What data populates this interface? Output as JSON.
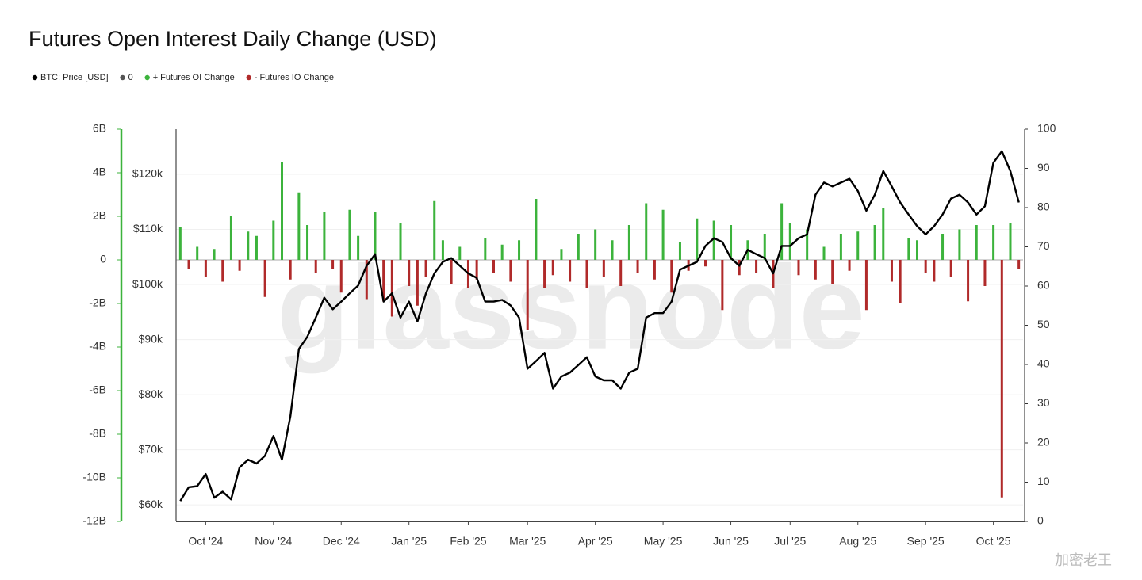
{
  "chart_data": {
    "type": "bar-line",
    "title": "Futures Open Interest Daily Change (USD)",
    "watermark": "glassnode",
    "credit": "加密老王",
    "categories": [
      null,
      null,
      null,
      "Oct '24",
      null,
      null,
      null,
      null,
      null,
      null,
      null,
      "Nov '24",
      null,
      null,
      null,
      null,
      null,
      null,
      null,
      "Dec '24",
      null,
      null,
      null,
      null,
      null,
      null,
      null,
      "Jan '25",
      null,
      null,
      null,
      null,
      null,
      null,
      "Feb '25",
      null,
      null,
      null,
      null,
      null,
      null,
      "Mar '25",
      null,
      null,
      null,
      null,
      null,
      null,
      null,
      "Apr '25",
      null,
      null,
      null,
      null,
      null,
      null,
      null,
      "May '25",
      null,
      null,
      null,
      null,
      null,
      null,
      null,
      "Jun '25",
      null,
      null,
      null,
      null,
      null,
      null,
      "Jul '25",
      null,
      null,
      null,
      null,
      null,
      null,
      null,
      "Aug '25",
      null,
      null,
      null,
      null,
      null,
      null,
      null,
      "Sep '25",
      null,
      null,
      null,
      null,
      null,
      null,
      null,
      "Oct '25",
      null,
      null,
      null
    ],
    "series": [
      {
        "name": "BTC: Price [USD]",
        "color": "#000000",
        "axis": "y2",
        "kind": "line",
        "values": [
          60700,
          63200,
          63400,
          65600,
          61300,
          62400,
          61000,
          66800,
          68200,
          67500,
          68900,
          72500,
          68200,
          76100,
          88300,
          90500,
          94000,
          97600,
          95500,
          96900,
          98400,
          99800,
          103400,
          105500,
          96900,
          98400,
          94000,
          96900,
          93300,
          98400,
          102000,
          104100,
          104800,
          103400,
          102000,
          101200,
          96900,
          96900,
          97200,
          96200,
          94000,
          84700,
          86100,
          87600,
          81100,
          83300,
          84000,
          85400,
          86800,
          83300,
          82600,
          82600,
          81100,
          84000,
          84700,
          94000,
          94800,
          94800,
          96900,
          102700,
          103400,
          104100,
          107000,
          108400,
          107700,
          104800,
          103400,
          106300,
          105500,
          104800,
          102000,
          107000,
          107000,
          108400,
          109100,
          116300,
          118500,
          117800,
          118500,
          119200,
          117000,
          113400,
          116300,
          120600,
          117800,
          114900,
          112700,
          110600,
          109100,
          110600,
          112700,
          115600,
          116300,
          114900,
          112700,
          114200,
          122100,
          124200,
          120600,
          114900
        ]
      },
      {
        "name": "0",
        "color": "#555555",
        "kind": "rule",
        "value": 0
      },
      {
        "name": "+ Futures OI Change",
        "color": "#3cb33c",
        "kind": "bar",
        "values": [
          1500000000.0,
          null,
          600000000.0,
          null,
          500000000.0,
          null,
          2000000000.0,
          null,
          1300000000.0,
          1100000000.0,
          null,
          1800000000.0,
          4500000000.0,
          null,
          3100000000.0,
          1600000000.0,
          null,
          2200000000.0,
          null,
          null,
          2300000000.0,
          1100000000.0,
          null,
          2200000000.0,
          null,
          null,
          1700000000.0,
          null,
          null,
          null,
          2700000000.0,
          900000000.0,
          null,
          600000000.0,
          null,
          null,
          1000000000.0,
          null,
          700000000.0,
          null,
          900000000.0,
          null,
          2800000000.0,
          null,
          null,
          500000000.0,
          null,
          1200000000.0,
          null,
          1400000000.0,
          null,
          900000000.0,
          null,
          1600000000.0,
          null,
          2600000000.0,
          null,
          2300000000.0,
          null,
          800000000.0,
          null,
          1900000000.0,
          null,
          1800000000.0,
          null,
          1600000000.0,
          null,
          900000000.0,
          null,
          1200000000.0,
          null,
          2600000000.0,
          1700000000.0,
          null,
          1400000000.0,
          null,
          600000000.0,
          null,
          1200000000.0,
          null,
          1300000000.0,
          null,
          1600000000.0,
          2400000000.0,
          null,
          null,
          1000000000.0,
          900000000.0,
          null,
          null,
          1200000000.0,
          null,
          1400000000.0,
          null,
          1600000000.0,
          null,
          1600000000.0,
          null,
          1700000000.0,
          null
        ]
      },
      {
        "name": "- Futures IO Change",
        "color": "#b02a2a",
        "kind": "bar",
        "values": [
          null,
          -400000000.0,
          null,
          -800000000.0,
          null,
          -1000000000.0,
          null,
          -500000000.0,
          null,
          null,
          -1700000000.0,
          null,
          null,
          -900000000.0,
          null,
          null,
          -600000000.0,
          null,
          -400000000.0,
          -1500000000.0,
          null,
          null,
          -1800000000.0,
          null,
          -1900000000.0,
          -2600000000.0,
          null,
          -1200000000.0,
          -2100000000.0,
          -800000000.0,
          null,
          null,
          -1100000000.0,
          null,
          -1300000000.0,
          -900000000.0,
          null,
          -600000000.0,
          null,
          -1000000000.0,
          null,
          -3200000000.0,
          null,
          -1300000000.0,
          -700000000.0,
          null,
          -1000000000.0,
          null,
          -1300000000.0,
          null,
          -800000000.0,
          null,
          -1200000000.0,
          null,
          -600000000.0,
          null,
          -900000000.0,
          null,
          -1500000000.0,
          null,
          -500000000.0,
          null,
          -300000000.0,
          null,
          -2300000000.0,
          null,
          -700000000.0,
          null,
          -600000000.0,
          null,
          -1300000000.0,
          null,
          null,
          -700000000.0,
          null,
          -900000000.0,
          null,
          -1100000000.0,
          null,
          -500000000.0,
          null,
          -2300000000.0,
          null,
          null,
          -1000000000.0,
          -2000000000.0,
          null,
          null,
          -600000000.0,
          -1000000000.0,
          null,
          -800000000.0,
          null,
          -1900000000.0,
          null,
          -1200000000.0,
          null,
          -10900000000.0,
          null,
          -400000000.0
        ]
      }
    ],
    "ylim": [
      -12000000000.0,
      6000000000.0
    ],
    "yticks": [
      {
        "value": 6000000000.0,
        "label": "6B"
      },
      {
        "value": 4000000000.0,
        "label": "4B"
      },
      {
        "value": 2000000000.0,
        "label": "2B"
      },
      0,
      {
        "value": -2000000000.0,
        "label": "-2B"
      },
      {
        "value": -4000000000.0,
        "label": "-4B"
      },
      {
        "value": -6000000000.0,
        "label": "-6B"
      },
      {
        "value": -8000000000.0,
        "label": "-8B"
      },
      {
        "value": -10000000000.0,
        "label": "-10B"
      },
      {
        "value": -12000000000.0,
        "label": "-12B"
      }
    ],
    "y2lim": [
      57000,
      128200
    ],
    "y2ticks": [
      {
        "value": 120000,
        "label": "$120k"
      },
      {
        "value": 110000,
        "label": "$110k"
      },
      {
        "value": 100000,
        "label": "$100k"
      },
      {
        "value": 90000,
        "label": "$90k"
      },
      {
        "value": 80000,
        "label": "$80k"
      },
      {
        "value": 70000,
        "label": "$70k"
      },
      {
        "value": 60000,
        "label": "$60k"
      }
    ],
    "y3lim": [
      0,
      100
    ],
    "y3ticks": [
      0,
      10,
      20,
      30,
      40,
      50,
      60,
      70,
      80,
      90,
      100
    ],
    "grid": true,
    "legend": "top-left"
  }
}
